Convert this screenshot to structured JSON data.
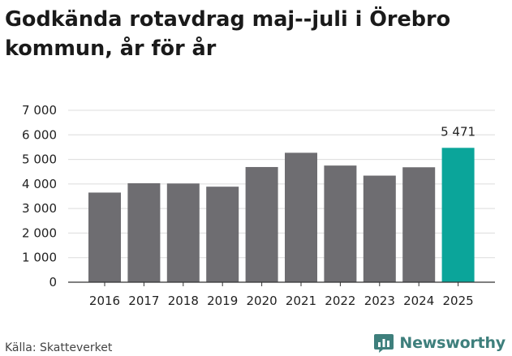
{
  "title": "Godkända rotavdrag maj--juli i Örebro kommun, år för år",
  "source": "Källa: Skatteverket",
  "brand": "Newsworthy",
  "colors": {
    "bar": "#6e6d71",
    "highlight": "#0ba59a",
    "grid": "#dcdcdc",
    "axis": "#333333",
    "brand": "#3e7f7c"
  },
  "chart_data": {
    "type": "bar",
    "categories": [
      "2016",
      "2017",
      "2018",
      "2019",
      "2020",
      "2021",
      "2022",
      "2023",
      "2024",
      "2025"
    ],
    "values": [
      3650,
      4030,
      4020,
      3890,
      4690,
      5270,
      4750,
      4340,
      4680,
      5471
    ],
    "highlight_index": 9,
    "data_labels": {
      "9": "5 471"
    },
    "ylim": [
      0,
      7000
    ],
    "yticks": [
      0,
      1000,
      2000,
      3000,
      4000,
      5000,
      6000,
      7000
    ],
    "ytick_labels": [
      "0",
      "1 000",
      "2 000",
      "3 000",
      "4 000",
      "5 000",
      "6 000",
      "7 000"
    ],
    "grid": true
  }
}
